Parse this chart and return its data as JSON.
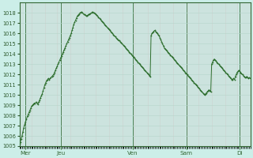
{
  "bg_color": "#cceee8",
  "line_color": "#2d6e2d",
  "marker_color": "#2d6e2d",
  "ylim": [
    1005,
    1019
  ],
  "yticks": [
    1005,
    1006,
    1007,
    1008,
    1009,
    1010,
    1011,
    1012,
    1013,
    1014,
    1015,
    1016,
    1017,
    1018
  ],
  "day_labels": [
    "Mer",
    "Jeu",
    "Ven",
    "Sam",
    "Di"
  ],
  "day_positions": [
    8,
    56,
    152,
    224,
    296
  ],
  "xlim": [
    0,
    310
  ],
  "pressure_values": [
    1005.2,
    1005.4,
    1005.7,
    1006.0,
    1006.4,
    1006.8,
    1007.1,
    1007.4,
    1007.6,
    1007.9,
    1008.1,
    1008.3,
    1008.5,
    1008.7,
    1008.9,
    1009.0,
    1009.1,
    1009.2,
    1009.2,
    1009.3,
    1009.2,
    1009.1,
    1009.3,
    1009.5,
    1009.7,
    1009.9,
    1010.1,
    1010.4,
    1010.7,
    1011.0,
    1011.2,
    1011.4,
    1011.5,
    1011.6,
    1011.5,
    1011.6,
    1011.7,
    1011.8,
    1011.9,
    1012.0,
    1012.2,
    1012.4,
    1012.6,
    1012.8,
    1013.0,
    1013.2,
    1013.4,
    1013.6,
    1013.8,
    1014.0,
    1014.2,
    1014.4,
    1014.6,
    1014.8,
    1015.0,
    1015.2,
    1015.4,
    1015.6,
    1015.8,
    1016.0,
    1016.3,
    1016.6,
    1016.9,
    1017.1,
    1017.3,
    1017.5,
    1017.7,
    1017.8,
    1017.9,
    1018.0,
    1018.05,
    1018.1,
    1018.0,
    1017.9,
    1017.85,
    1017.8,
    1017.75,
    1017.7,
    1017.8,
    1017.85,
    1017.9,
    1017.95,
    1018.0,
    1018.1,
    1018.05,
    1018.0,
    1017.95,
    1017.9,
    1017.8,
    1017.7,
    1017.6,
    1017.5,
    1017.4,
    1017.3,
    1017.2,
    1017.1,
    1017.0,
    1016.9,
    1016.8,
    1016.7,
    1016.6,
    1016.5,
    1016.4,
    1016.3,
    1016.2,
    1016.1,
    1016.0,
    1015.9,
    1015.8,
    1015.7,
    1015.6,
    1015.5,
    1015.4,
    1015.3,
    1015.3,
    1015.2,
    1015.1,
    1015.0,
    1014.9,
    1014.8,
    1014.7,
    1014.6,
    1014.5,
    1014.4,
    1014.3,
    1014.2,
    1014.1,
    1014.0,
    1013.9,
    1013.8,
    1013.7,
    1013.6,
    1013.5,
    1013.4,
    1013.3,
    1013.2,
    1013.1,
    1013.0,
    1012.9,
    1012.8,
    1012.7,
    1012.6,
    1012.5,
    1012.4,
    1012.3,
    1012.2,
    1012.1,
    1012.0,
    1011.9,
    1011.8,
    1015.8,
    1016.0,
    1016.1,
    1016.2,
    1016.3,
    1016.2,
    1016.1,
    1016.0,
    1015.9,
    1015.8,
    1015.6,
    1015.4,
    1015.2,
    1015.0,
    1014.8,
    1014.6,
    1014.5,
    1014.4,
    1014.3,
    1014.2,
    1014.1,
    1014.0,
    1013.9,
    1013.8,
    1013.7,
    1013.6,
    1013.5,
    1013.4,
    1013.3,
    1013.2,
    1013.1,
    1013.0,
    1012.9,
    1012.8,
    1012.7,
    1012.6,
    1012.5,
    1012.4,
    1012.3,
    1012.2,
    1012.1,
    1012.0,
    1011.9,
    1011.8,
    1011.7,
    1011.6,
    1011.5,
    1011.4,
    1011.3,
    1011.2,
    1011.1,
    1011.0,
    1010.9,
    1010.8,
    1010.7,
    1010.6,
    1010.5,
    1010.4,
    1010.3,
    1010.2,
    1010.1,
    1010.0,
    1010.1,
    1010.2,
    1010.3,
    1010.4,
    1010.5,
    1010.4,
    1010.3,
    1013.0,
    1013.2,
    1013.4,
    1013.5,
    1013.4,
    1013.3,
    1013.2,
    1013.1,
    1013.0,
    1012.9,
    1012.8,
    1012.7,
    1012.6,
    1012.5,
    1012.4,
    1012.3,
    1012.2,
    1012.1,
    1012.0,
    1011.9,
    1011.8,
    1011.7,
    1011.6,
    1011.5,
    1011.5,
    1011.6,
    1011.5,
    1011.8,
    1012.0,
    1012.2,
    1012.3,
    1012.4,
    1012.3,
    1012.2,
    1012.1,
    1012.0,
    1011.9,
    1011.8,
    1011.7,
    1011.7,
    1011.8,
    1011.7,
    1011.6,
    1011.7,
    1011.6
  ]
}
